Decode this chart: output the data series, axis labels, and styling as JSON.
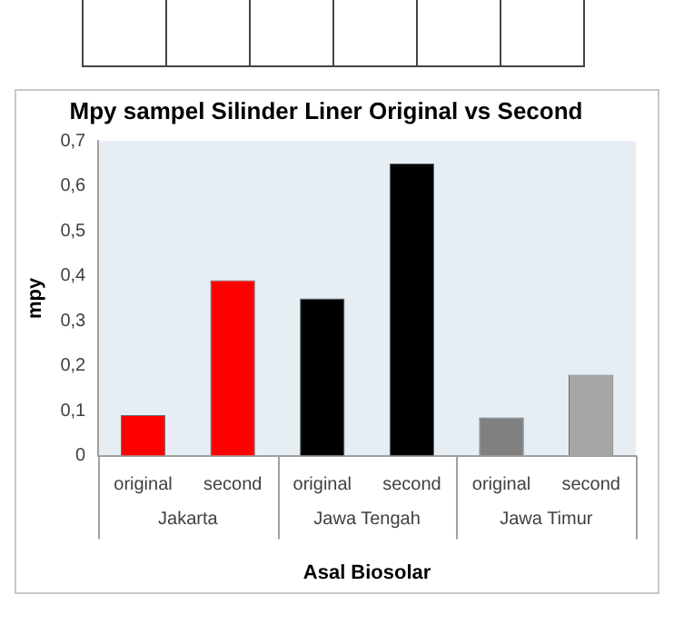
{
  "chart_data": {
    "type": "bar",
    "title": "Mpy sampel Silinder Liner Original vs Second",
    "xlabel": "Asal Biosolar",
    "ylabel": "mpy",
    "categories": [
      "original",
      "second",
      "original",
      "second",
      "original",
      "second"
    ],
    "values": [
      0.09,
      0.39,
      0.35,
      0.65,
      0.085,
      0.18
    ],
    "colors": [
      "#ff0000",
      "#ff0000",
      "#000000",
      "#000000",
      "#808080",
      "#a6a6a6"
    ],
    "annotations": [
      "Jakarta",
      "Jawa Tengah",
      "Jawa Timur"
    ],
    "ylim": [
      0,
      0.7
    ],
    "yticks": [
      0,
      {
        "value": 0.1,
        "label": "0,1"
      },
      {
        "value": 0.2,
        "label": "0,2"
      },
      {
        "value": 0.3,
        "label": "0,3"
      },
      {
        "value": 0.4,
        "label": "0,4"
      },
      {
        "value": 0.5,
        "label": "0,5"
      },
      {
        "value": 0.6,
        "label": "0,6"
      },
      {
        "value": 0.7,
        "label": "0,7"
      }
    ],
    "grid": false,
    "legend": false
  }
}
